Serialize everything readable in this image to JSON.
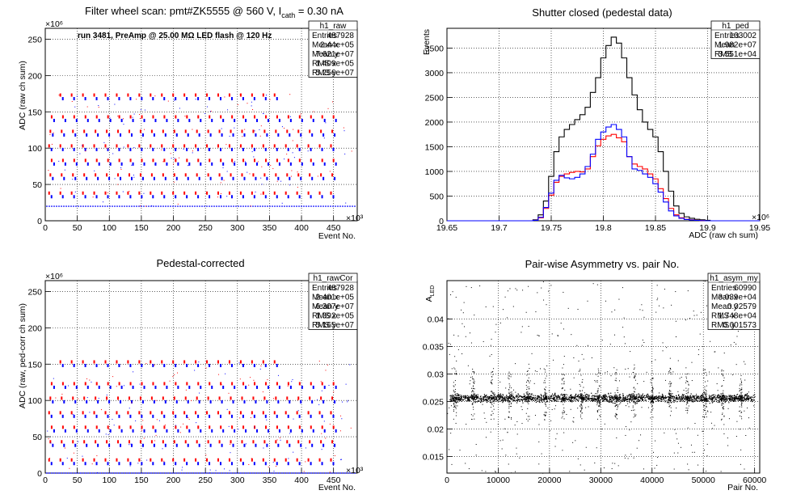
{
  "panels": [
    {
      "id": "p1",
      "title": "Filter wheel scan: pmt#ZK5555 @   560 V, I",
      "title_sub": "cath",
      "title_tail": " = 0.30 nA",
      "note": "run 3481, PreAmp @ 25.00 MΩ LED flash @  120 Hz",
      "ylabel": "ADC (raw ch sum)",
      "xlabel": "Event No.",
      "x_exp": "×10³",
      "y_exp": "×10⁶",
      "xticks": [
        "0",
        "50",
        "100",
        "150",
        "200",
        "250",
        "300",
        "350",
        "400",
        "450"
      ],
      "yticks": [
        "0",
        "50",
        "100",
        "150",
        "200",
        "250"
      ],
      "stats": {
        "name": "h1_raw",
        "rows": [
          [
            "Entries",
            "487928"
          ],
          [
            "Mean x",
            "2.44e+05"
          ],
          [
            "Mean y",
            "7.621e+07"
          ],
          [
            "RMS x",
            "1.409e+05"
          ],
          [
            "RMS y",
            "5.256e+07"
          ]
        ]
      }
    },
    {
      "id": "p2",
      "title": "Shutter closed (pedestal data)",
      "ylabel": "Events",
      "xlabel": "ADC (raw ch sum)",
      "x_exp": "×10⁶",
      "xticks": [
        "19.65",
        "19.7",
        "19.75",
        "19.8",
        "19.85",
        "19.9",
        "19.95"
      ],
      "yticks": [
        "0",
        "500",
        "1000",
        "1500",
        "2000",
        "2500",
        "3000",
        "3500"
      ],
      "stats": {
        "name": "h1_ped",
        "rows": [
          [
            "Entries",
            "103002"
          ],
          [
            "Mean",
            "1.982e+07"
          ],
          [
            "RMS",
            "3.551e+04"
          ]
        ]
      }
    },
    {
      "id": "p3",
      "title": "Pedestal-corrected",
      "ylabel": "ADC (raw, ped-corr ch sum)",
      "xlabel": "Event No.",
      "x_exp": "×10³",
      "y_exp": "×10⁶",
      "xticks": [
        "0",
        "50",
        "100",
        "150",
        "200",
        "250",
        "300",
        "350",
        "400",
        "450"
      ],
      "yticks": [
        "0",
        "50",
        "100",
        "150",
        "200",
        "250"
      ],
      "stats": {
        "name": "h1_rawCor",
        "rows": [
          [
            "Entries",
            "487928"
          ],
          [
            "Mean x",
            "2.401e+05"
          ],
          [
            "Mean y",
            "6.307e+07"
          ],
          [
            "RMS x",
            "1.392e+05"
          ],
          [
            "RMS y",
            "5.165e+07"
          ]
        ]
      }
    },
    {
      "id": "p4",
      "title": "Pair-wise Asymmetry vs. pair No.",
      "ylabel": "A",
      "ylabel_sub": "LED",
      "xlabel": "Pair No.",
      "xticks": [
        "0",
        "10000",
        "20000",
        "30000",
        "40000",
        "50000",
        "60000"
      ],
      "yticks": [
        "0.015",
        "0.02",
        "0.025",
        "0.03",
        "0.035",
        "0.04"
      ],
      "stats": {
        "name": "h1_asym_my",
        "rows": [
          [
            "Entries",
            "60990"
          ],
          [
            "Mean x",
            "3.039e+04"
          ],
          [
            "Mean y",
            "0.02579"
          ],
          [
            "RMS x",
            "1.748e+04"
          ],
          [
            "RMS y",
            "0.001573"
          ]
        ]
      }
    }
  ],
  "chart_data": [
    {
      "type": "scatter",
      "title": "Filter wheel scan: pmt#ZK5555 @   560 V, I_cath = 0.30 nA",
      "xlabel": "Event No. (×10³)",
      "ylabel": "ADC (raw ch sum) (×10⁶)",
      "xlim": [
        0,
        487
      ],
      "ylim": [
        0,
        265
      ],
      "grid": true,
      "pedestal_level": 20,
      "step_levels": [
        35,
        60,
        80,
        100,
        120,
        140,
        170
      ],
      "colors": {
        "series_a": "#ff0000",
        "series_b": "#0000ff",
        "pedestal": "#0000ff"
      }
    },
    {
      "type": "line",
      "title": "Shutter closed (pedestal data)",
      "xlabel": "ADC (raw ch sum) (×10⁶)",
      "ylabel": "Events",
      "xlim": [
        19.65,
        19.95
      ],
      "ylim": [
        0,
        3900
      ],
      "grid": true,
      "x": [
        19.735,
        19.74,
        19.745,
        19.75,
        19.755,
        19.76,
        19.765,
        19.77,
        19.775,
        19.78,
        19.785,
        19.79,
        19.795,
        19.8,
        19.805,
        19.81,
        19.815,
        19.82,
        19.825,
        19.83,
        19.835,
        19.84,
        19.845,
        19.85,
        19.855,
        19.86,
        19.865,
        19.87,
        19.875,
        19.88,
        19.885,
        19.89,
        19.895,
        19.9
      ],
      "series": [
        {
          "color": "#000000",
          "values": [
            20,
            120,
            400,
            900,
            1400,
            1700,
            1850,
            1950,
            2050,
            2150,
            2300,
            2600,
            2900,
            3300,
            3550,
            3720,
            3600,
            3300,
            2900,
            2550,
            2250,
            2000,
            1850,
            1700,
            1400,
            1000,
            600,
            300,
            150,
            80,
            50,
            30,
            20,
            10
          ]
        },
        {
          "color": "#ff0000",
          "values": [
            10,
            60,
            250,
            520,
            780,
            900,
            950,
            980,
            1000,
            990,
            1050,
            1300,
            1520,
            1650,
            1720,
            1750,
            1680,
            1600,
            1300,
            1150,
            1100,
            1050,
            950,
            850,
            650,
            450,
            250,
            120,
            60,
            30,
            20,
            10,
            5,
            0
          ]
        },
        {
          "color": "#0000ff",
          "values": [
            10,
            70,
            270,
            560,
            820,
            920,
            870,
            850,
            880,
            950,
            1100,
            1350,
            1650,
            1800,
            1900,
            1950,
            1850,
            1700,
            1300,
            1050,
            1020,
            950,
            880,
            750,
            580,
            380,
            200,
            100,
            50,
            25,
            15,
            8,
            4,
            0
          ]
        }
      ]
    },
    {
      "type": "scatter",
      "title": "Pedestal-corrected",
      "xlabel": "Event No. (×10³)",
      "ylabel": "ADC (raw, ped-corr ch sum) (×10⁶)",
      "xlim": [
        0,
        487
      ],
      "ylim": [
        0,
        265
      ],
      "grid": true,
      "pedestal_level": 0,
      "step_levels": [
        15,
        40,
        60,
        80,
        100,
        120,
        150
      ],
      "colors": {
        "series_a": "#ff0000",
        "series_b": "#0000ff",
        "pedestal": "#0000ff"
      }
    },
    {
      "type": "scatter",
      "title": "Pair-wise Asymmetry vs. pair No.",
      "xlabel": "Pair No.",
      "ylabel": "A_LED",
      "xlim": [
        0,
        61000
      ],
      "ylim": [
        0.012,
        0.047
      ],
      "grid": true,
      "band_center": 0.0257,
      "band_halfwidth": 0.0007,
      "spike_x": [
        1500,
        5000,
        8800,
        12200,
        15700,
        19100,
        22600,
        26100,
        29500,
        33000,
        36500,
        39900,
        43400,
        46800,
        50300,
        53700,
        57200
      ],
      "colors": {
        "points": "#000000"
      }
    }
  ]
}
